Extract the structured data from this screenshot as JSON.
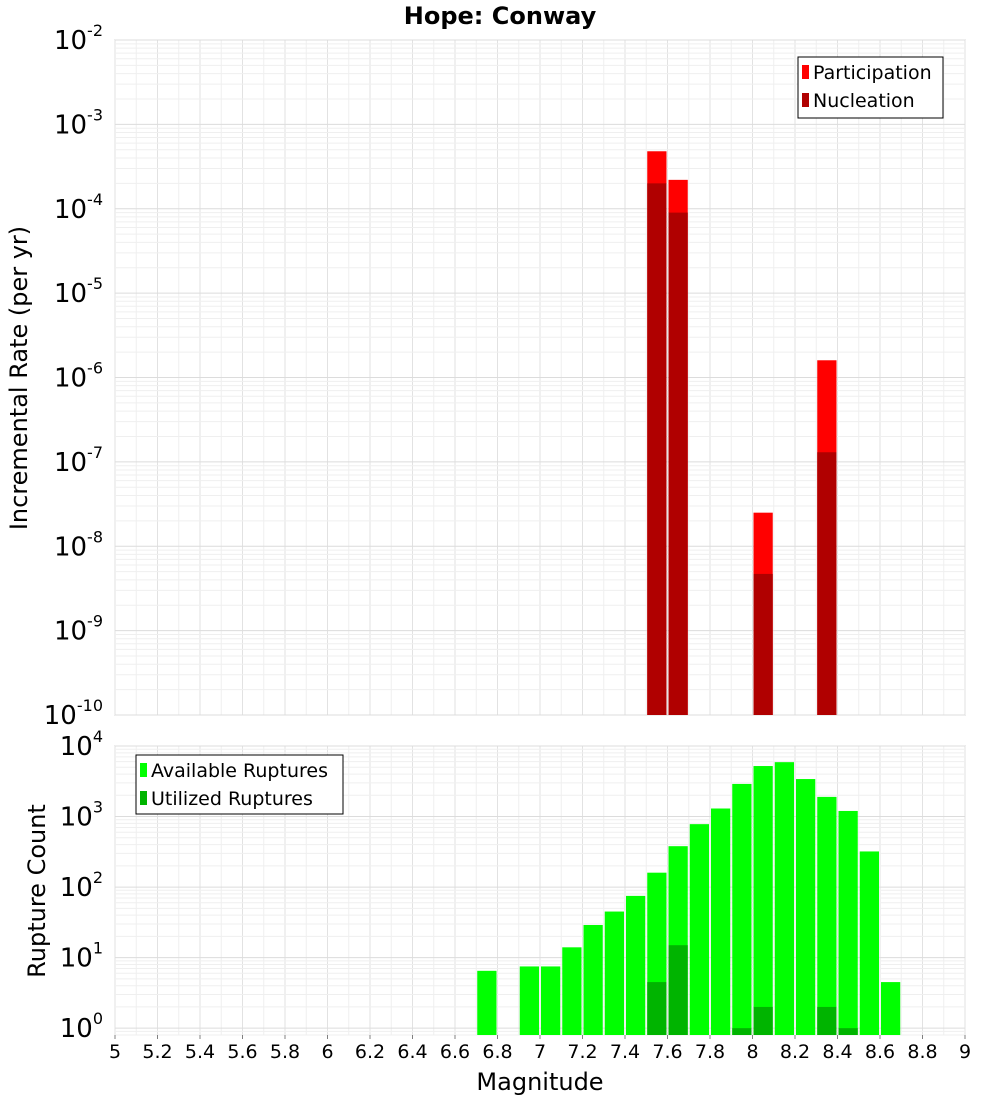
{
  "chart_data": [
    {
      "type": "bar",
      "title": "Hope: Conway",
      "xlabel": "Magnitude",
      "ylabel": "Incremental Rate (per yr)",
      "xlim": [
        5,
        9
      ],
      "ylim": [
        1e-10,
        0.01
      ],
      "yscale": "log",
      "grid": true,
      "legend_position": "top-right",
      "bin_width": 0.1,
      "x_ticks": [
        "5",
        "5.2",
        "5.4",
        "5.6",
        "5.8",
        "6",
        "6.2",
        "6.4",
        "6.6",
        "6.8",
        "7",
        "7.2",
        "7.4",
        "7.6",
        "7.8",
        "8",
        "8.2",
        "8.4",
        "8.6",
        "8.8",
        "9"
      ],
      "y_tick_exponents": [
        "-10",
        "-9",
        "-8",
        "-7",
        "-6",
        "-5",
        "-4",
        "-3",
        "-2"
      ],
      "series": [
        {
          "name": "Participation",
          "color": "#ff0000",
          "x": [
            7.55,
            7.65,
            8.05,
            8.35
          ],
          "values": [
            0.00048,
            0.00022,
            2.5e-08,
            1.6e-06
          ]
        },
        {
          "name": "Nucleation",
          "color": "#b00000",
          "x": [
            7.55,
            7.65,
            8.05,
            8.35
          ],
          "values": [
            0.0002,
            9e-05,
            4.7e-09,
            1.3e-07
          ]
        }
      ]
    },
    {
      "type": "bar",
      "xlabel": "Magnitude",
      "ylabel": "Rupture Count",
      "xlim": [
        5,
        9
      ],
      "ylim": [
        0.8,
        10000
      ],
      "yscale": "log",
      "grid": true,
      "legend_position": "top-left",
      "bin_width": 0.1,
      "y_tick_exponents": [
        "0",
        "1",
        "2",
        "3",
        "4"
      ],
      "series": [
        {
          "name": "Available Ruptures",
          "color": "#00ff00",
          "x": [
            6.75,
            6.95,
            7.05,
            7.15,
            7.25,
            7.35,
            7.45,
            7.55,
            7.65,
            7.75,
            7.85,
            7.95,
            8.05,
            8.15,
            8.25,
            8.35,
            8.45,
            8.55,
            8.65
          ],
          "values": [
            6.5,
            7.5,
            7.5,
            14,
            29,
            45,
            75,
            160,
            380,
            780,
            1300,
            2900,
            5200,
            5900,
            3400,
            1900,
            1200,
            320,
            4.5
          ]
        },
        {
          "name": "Utilized Ruptures",
          "color": "#00b400",
          "x": [
            7.55,
            7.65,
            7.95,
            8.05,
            8.35,
            8.45
          ],
          "values": [
            4.5,
            15,
            1,
            2,
            2,
            1
          ]
        }
      ]
    }
  ]
}
